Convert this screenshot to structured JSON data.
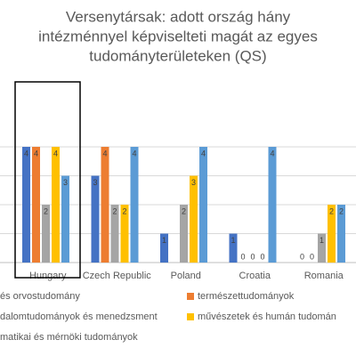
{
  "chart_data": {
    "type": "bar",
    "title": [
      "Versenytársak: adott ország hány",
      "intézménnyel képviselteti magát az egyes",
      "tudományterületeken (QS)"
    ],
    "categories": [
      "Hungary",
      "Czech Republic",
      "Poland",
      "Croatia",
      "Romania"
    ],
    "series": [
      {
        "name": "és orvostudomány",
        "color": "#4472c4",
        "values": [
          4,
          3,
          1,
          1,
          0
        ]
      },
      {
        "name": "természettudományok",
        "color": "#ed7d31",
        "values": [
          4,
          4,
          null,
          0,
          0
        ]
      },
      {
        "name": "dalomtudományok és menedzsment",
        "color": "#a5a5a5",
        "values": [
          2,
          2,
          2,
          0,
          1
        ]
      },
      {
        "name": "művészetek és humán tudomán",
        "color": "#ffc000",
        "values": [
          4,
          2,
          3,
          0,
          2
        ]
      },
      {
        "name": "matikai és mérnöki tudományok",
        "color": "#5b9bd5",
        "values": [
          3,
          4,
          4,
          4,
          2
        ]
      }
    ],
    "ylim": [
      0,
      4
    ],
    "yticks": [
      0,
      1,
      2,
      3,
      4
    ],
    "grid": true
  }
}
